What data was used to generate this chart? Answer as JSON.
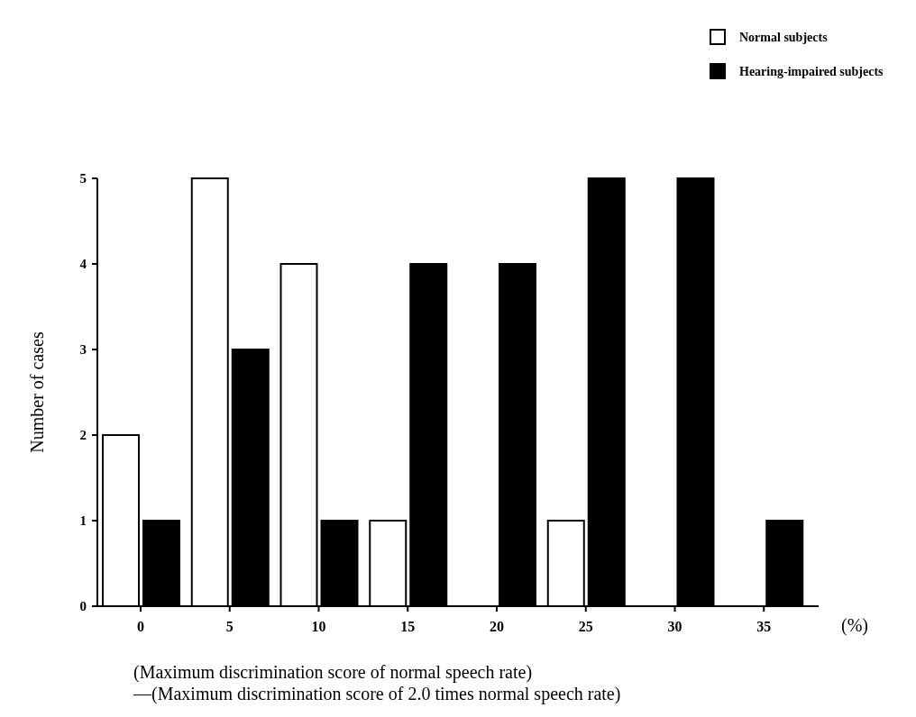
{
  "chart_data": {
    "type": "bar",
    "ylabel": "Number of cases",
    "xlabel": "(Maximum discrimination score of normal speech rate)\n—(Maximum discrimination score of 2.0 times normal speech rate)",
    "categories": [
      "0",
      "5",
      "10",
      "15",
      "20",
      "25",
      "30",
      "35"
    ],
    "series": [
      {
        "name": "Normal subjects",
        "color": "#ffffff",
        "values": [
          2,
          5,
          4,
          1,
          0,
          1,
          0,
          0
        ]
      },
      {
        "name": "Hearing-impaired subjects",
        "color": "#000000",
        "values": [
          1,
          3,
          1,
          4,
          4,
          5,
          5,
          1
        ]
      }
    ],
    "ylim": [
      0,
      5
    ],
    "yticks": [
      0,
      1,
      2,
      3,
      4,
      5
    ],
    "grid": false,
    "legend": "top right",
    "annotations": [
      "(%)"
    ]
  }
}
